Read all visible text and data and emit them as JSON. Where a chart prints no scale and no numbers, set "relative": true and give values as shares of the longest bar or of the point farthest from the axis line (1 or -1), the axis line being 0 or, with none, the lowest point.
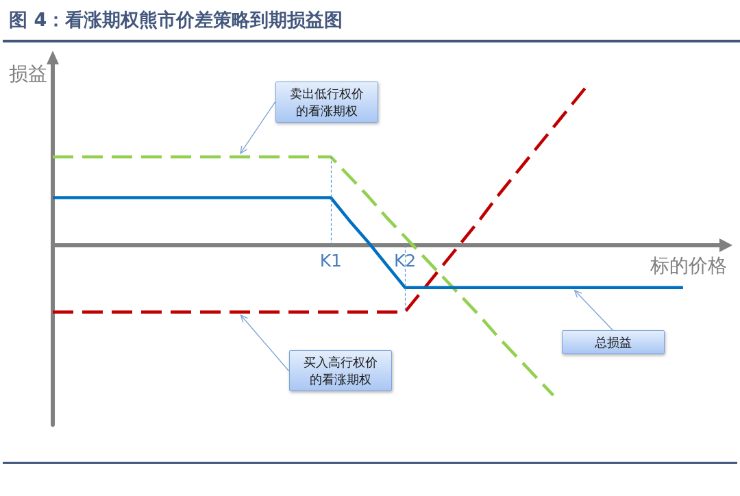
{
  "chart_data": {
    "type": "line",
    "title": "图 4：看涨期权熊市价差策略到期损益图",
    "xlabel": "标的价格",
    "ylabel": "损益",
    "relative": true,
    "marker": "none",
    "categories": [
      null,
      null,
      null,
      null,
      null,
      null,
      null,
      null,
      null,
      null,
      null,
      null,
      null,
      null,
      null,
      "K1",
      null,
      null,
      null,
      "K2",
      null,
      null,
      null,
      null,
      null,
      null,
      null,
      null,
      null,
      null,
      null,
      null,
      null,
      null,
      null,
      null,
      null
    ],
    "series": [
      {
        "name": "卖出低行权价的看涨期权",
        "color": "#92d050",
        "line_style": "dashed",
        "values": [
          0.54,
          0.54,
          0.54,
          0.54,
          0.54,
          0.54,
          0.54,
          0.54,
          0.54,
          0.54,
          0.54,
          0.54,
          0.54,
          0.54,
          0.54,
          0.54,
          0.42,
          0.3,
          0.17,
          0.05,
          -0.07,
          -0.19,
          -0.31,
          -0.43,
          -0.56,
          -0.68,
          -0.8,
          -0.92,
          null,
          null,
          null,
          null,
          null,
          null,
          null,
          null,
          null
        ]
      },
      {
        "name": "买入高行权价的看涨期权",
        "color": "#c00000",
        "line_style": "dashed",
        "values": [
          -0.41,
          -0.41,
          -0.41,
          -0.41,
          -0.41,
          -0.41,
          -0.41,
          -0.41,
          -0.41,
          -0.41,
          -0.41,
          -0.41,
          -0.41,
          -0.41,
          -0.41,
          -0.41,
          -0.41,
          -0.41,
          -0.41,
          -0.41,
          -0.27,
          -0.13,
          0.01,
          0.15,
          0.3,
          0.44,
          0.58,
          0.72,
          0.86,
          1,
          null,
          null,
          null,
          null,
          null,
          null,
          null
        ]
      },
      {
        "name": "总损益",
        "color": "#0070c0",
        "line_style": "solid",
        "values": [
          0.29,
          0.29,
          0.29,
          0.29,
          0.29,
          0.29,
          0.29,
          0.29,
          0.29,
          0.29,
          0.29,
          0.29,
          0.29,
          0.29,
          0.29,
          0.29,
          0.15,
          0.02,
          -0.12,
          -0.26,
          -0.26,
          -0.26,
          -0.26,
          -0.26,
          -0.26,
          -0.26,
          -0.26,
          -0.26,
          -0.26,
          -0.26,
          -0.26,
          -0.26,
          -0.26,
          -0.26,
          -0.26,
          null,
          null
        ]
      }
    ],
    "ref_lines": [
      {
        "axis": "x",
        "value": "K1",
        "color": "#5b9bd5",
        "line_style": "dashed"
      },
      {
        "axis": "x",
        "value": "K2",
        "color": "#5b9bd5",
        "line_style": "dashed"
      }
    ]
  }
}
